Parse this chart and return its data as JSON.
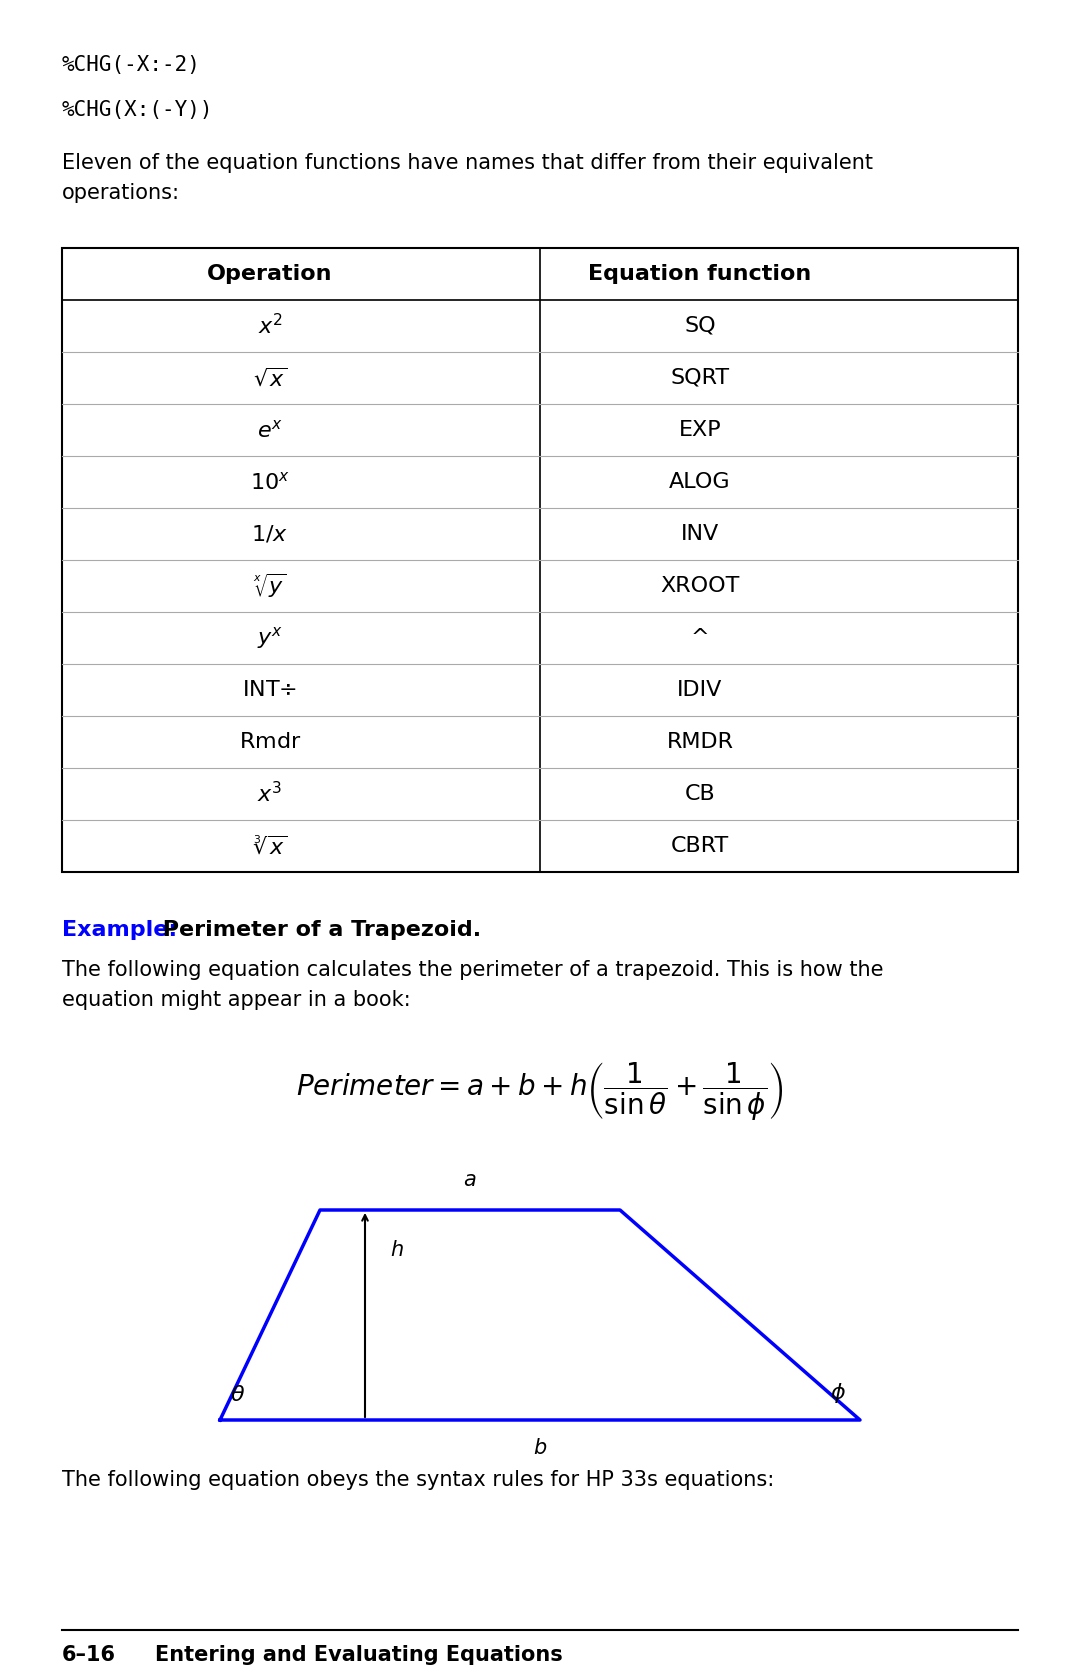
{
  "bg_color": "#ffffff",
  "text_color": "#000000",
  "blue_color": "#0000ff",
  "code_line1": "%CHG(-X:-2)",
  "code_line2": "%CHG(X:(-Y))",
  "intro_text": "Eleven of the equation functions have names that differ from their equivalent\noperations:",
  "table_headers": [
    "Operation",
    "Equation function"
  ],
  "table_ops": [
    "$x^2$",
    "$\\sqrt{x}$",
    "$e^x$",
    "$10^x$",
    "$1/x$",
    "$\\sqrt[x]{y}$",
    "$y^x$",
    "INT÷",
    "Rmdr",
    "$x^3$",
    "$\\sqrt[3]{x}$"
  ],
  "table_funcs": [
    "SQ",
    "SQRT",
    "EXP",
    "ALOG",
    "INV",
    "XROOT",
    "^",
    "IDIV",
    "RMDR",
    "CB",
    "CBRT"
  ],
  "example_label": "Example:",
  "example_title": " Perimeter of a Trapezoid.",
  "para_text": "The following equation calculates the perimeter of a trapezoid. This is how the\nequation might appear in a book:",
  "footer_line": "6–16",
  "footer_text": "Entering and Evaluating Equations"
}
